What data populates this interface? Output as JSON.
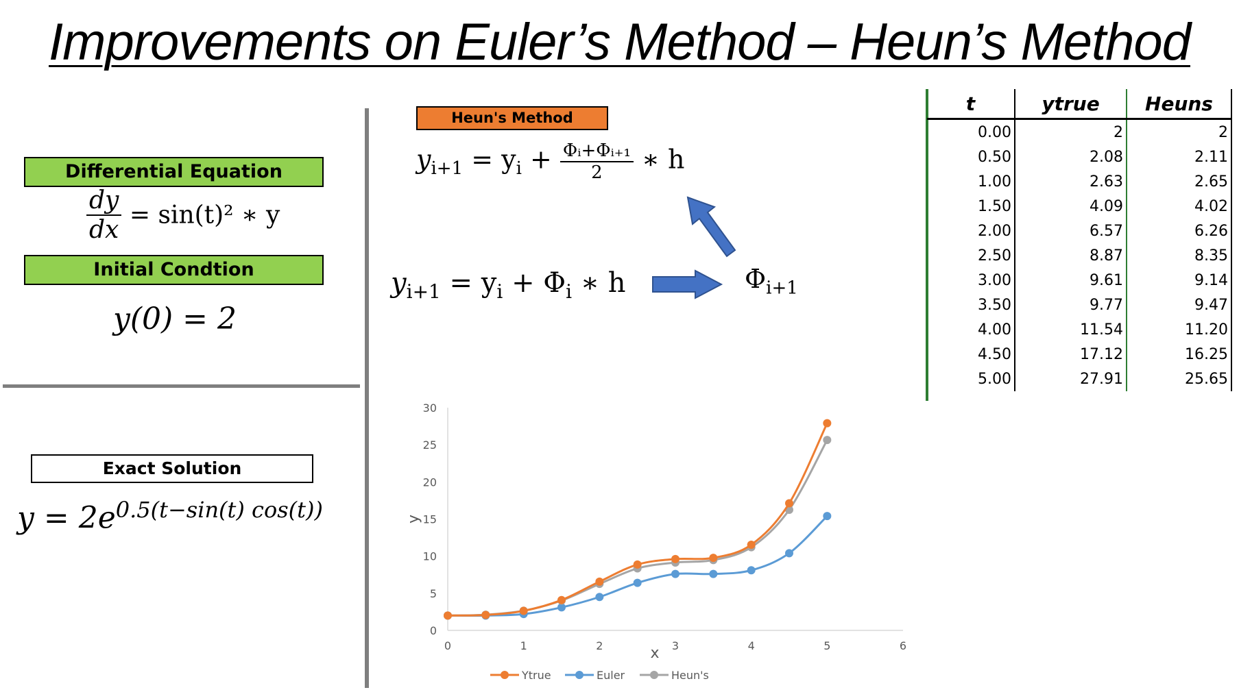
{
  "title": "Improvements on Euler’s Method – Heun’s Method",
  "left_panel": {
    "diff_eq_label": "Differential Equation",
    "diff_eq": {
      "num": "dy",
      "den": "dx",
      "rhs": "= sin(t)² ∗ y"
    },
    "initial_label": "Initial Condtion",
    "initial_eq": "y(0) = 2",
    "exact_label": "Exact Solution",
    "exact_eq": {
      "lhs": "y = 2e",
      "exp": "0.5(t−sin(t) cos(t))"
    }
  },
  "heun_panel": {
    "label": "Heun's Method",
    "formula": {
      "lhs": "y",
      "lhs_sub": "i+1",
      "mid": " = y",
      "mid_sub": "i",
      "plus": " + ",
      "frac_num": "Φᵢ+Φᵢ₊₁",
      "frac_den": "2",
      "tail": " ∗ h"
    },
    "euler_formula": {
      "lhs": "y",
      "lhs_sub": "i+1",
      "mid": " = y",
      "mid_sub": "i",
      "rest": " + Φ",
      "rest_sub": "i",
      "tail": " ∗ h"
    },
    "phi": {
      "sym": "Φ",
      "sub": "i+1"
    }
  },
  "table": {
    "headers": [
      "t",
      "ytrue",
      "Heuns"
    ],
    "rows": [
      [
        "0.00",
        "2",
        "2"
      ],
      [
        "0.50",
        "2.08",
        "2.11"
      ],
      [
        "1.00",
        "2.63",
        "2.65"
      ],
      [
        "1.50",
        "4.09",
        "4.02"
      ],
      [
        "2.00",
        "6.57",
        "6.26"
      ],
      [
        "2.50",
        "8.87",
        "8.35"
      ],
      [
        "3.00",
        "9.61",
        "9.14"
      ],
      [
        "3.50",
        "9.77",
        "9.47"
      ],
      [
        "4.00",
        "11.54",
        "11.20"
      ],
      [
        "4.50",
        "17.12",
        "16.25"
      ],
      [
        "5.00",
        "27.91",
        "25.65"
      ]
    ]
  },
  "colors": {
    "ytrue": "#ed7d31",
    "euler": "#5b9bd5",
    "heuns": "#a5a5a5",
    "green": "#92d050",
    "orange": "#ed7d31"
  },
  "chart_data": {
    "type": "line",
    "xlabel": "x",
    "ylabel": "y",
    "xlim": [
      0,
      6
    ],
    "ylim": [
      0,
      30
    ],
    "xticks": [
      0,
      1,
      2,
      3,
      4,
      5,
      6
    ],
    "yticks": [
      0,
      5,
      10,
      15,
      20,
      25,
      30
    ],
    "grid": false,
    "legend": "bottom",
    "x": [
      0,
      0.5,
      1,
      1.5,
      2,
      2.5,
      3,
      3.5,
      4,
      4.5,
      5
    ],
    "series": [
      {
        "name": "Ytrue",
        "values": [
          2,
          2.08,
          2.63,
          4.09,
          6.57,
          8.87,
          9.61,
          9.77,
          11.54,
          17.12,
          27.91
        ]
      },
      {
        "name": "Euler",
        "values": [
          2,
          2,
          2.2,
          3.1,
          4.5,
          6.4,
          7.6,
          7.6,
          8.1,
          10.4,
          15.4
        ]
      },
      {
        "name": "Heun's",
        "values": [
          2,
          2.11,
          2.65,
          4.02,
          6.26,
          8.35,
          9.14,
          9.47,
          11.2,
          16.25,
          25.65
        ]
      }
    ]
  }
}
